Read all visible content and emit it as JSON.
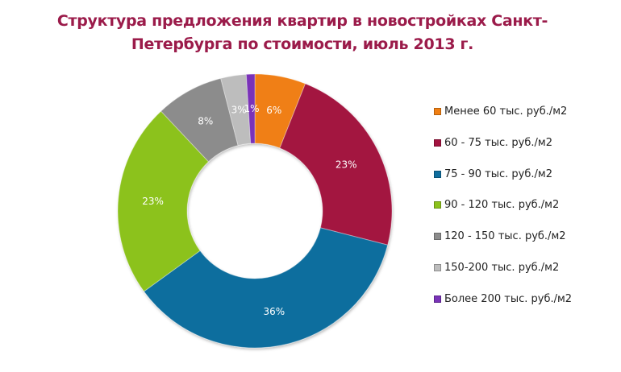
{
  "chart_data": {
    "type": "pie",
    "variant": "donut",
    "title": "Структура предложения квартир в новостройках Санкт-Петербурга по стоимости, июль 2013 г.",
    "title_lines": [
      "Структура предложения квартир в новостройках Санкт-",
      "Петербурга по стоимости, июль 2013 г."
    ],
    "categories": [
      "Менее 60 тыс. руб./м2",
      "60 - 75 тыс. руб./м2",
      "75 - 90 тыс. руб./м2",
      "90  - 120 тыс. руб./м2",
      "120 - 150 тыс. руб./м2",
      "150-200 тыс. руб./м2",
      "Более 200 тыс. руб./м2"
    ],
    "values": [
      6,
      23,
      36,
      23,
      8,
      3,
      1
    ],
    "labels": [
      "6%",
      "23%",
      "36%",
      "23%",
      "8%",
      "3%",
      "1%"
    ],
    "colors": [
      "#f07f12",
      "#a3123f",
      "#0f6e9e",
      "#8cc21c",
      "#8c8c8c",
      "#bdbdbd",
      "#7a33b8"
    ],
    "unit": "%",
    "legend_position": "right",
    "start_angle": "12 o'clock",
    "direction": "clockwise"
  },
  "legend": {
    "items": [
      {
        "label": "Менее 60 тыс. руб./м2",
        "color": "#f07f12"
      },
      {
        "label": "60 - 75 тыс. руб./м2",
        "color": "#a3123f"
      },
      {
        "label": "75 - 90 тыс. руб./м2",
        "color": "#0f6e9e"
      },
      {
        "label": "90  - 120 тыс. руб./м2",
        "color": "#8cc21c"
      },
      {
        "label": "120 - 150 тыс. руб./м2",
        "color": "#8c8c8c"
      },
      {
        "label": "150-200 тыс. руб./м2",
        "color": "#bdbdbd"
      },
      {
        "label": "Более 200 тыс. руб./м2",
        "color": "#7a33b8"
      }
    ]
  }
}
